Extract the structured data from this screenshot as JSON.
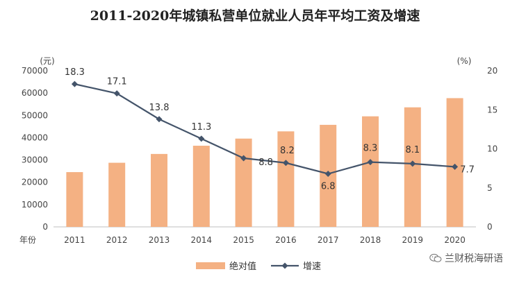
{
  "chart_data": {
    "type": "bar+line",
    "title": "2011-2020年城镇私营单位就业人员年平均工资及增速",
    "x_axis_label": "年份",
    "left_axis_unit": "(元)",
    "right_axis_unit": "(%)",
    "categories": [
      "2011",
      "2012",
      "2013",
      "2014",
      "2015",
      "2016",
      "2017",
      "2018",
      "2019",
      "2020"
    ],
    "left_ylim": [
      0,
      70000
    ],
    "left_ticks": [
      0,
      10000,
      20000,
      30000,
      40000,
      50000,
      60000,
      70000
    ],
    "right_ylim": [
      0,
      20
    ],
    "right_ticks": [
      0,
      5,
      10,
      15,
      20
    ],
    "series": [
      {
        "name": "绝对值",
        "kind": "bar",
        "axis": "left",
        "color": "#f4b183",
        "values": [
          24556,
          28752,
          32706,
          36390,
          39589,
          42833,
          45761,
          49575,
          53604,
          57727
        ]
      },
      {
        "name": "增速",
        "kind": "line",
        "axis": "right",
        "color": "#44546a",
        "values": [
          18.3,
          17.1,
          13.8,
          11.3,
          8.8,
          8.2,
          6.8,
          8.3,
          8.1,
          7.7
        ],
        "labels": [
          "18.3",
          "17.1",
          "13.8",
          "11.3",
          "8.8",
          "8.2",
          "6.8",
          "8.3",
          "8.1",
          "7.7"
        ]
      }
    ],
    "grid": false,
    "legend_position": "bottom"
  },
  "watermark": {
    "text": "兰财税海研语",
    "icon": "wechat-icon"
  }
}
